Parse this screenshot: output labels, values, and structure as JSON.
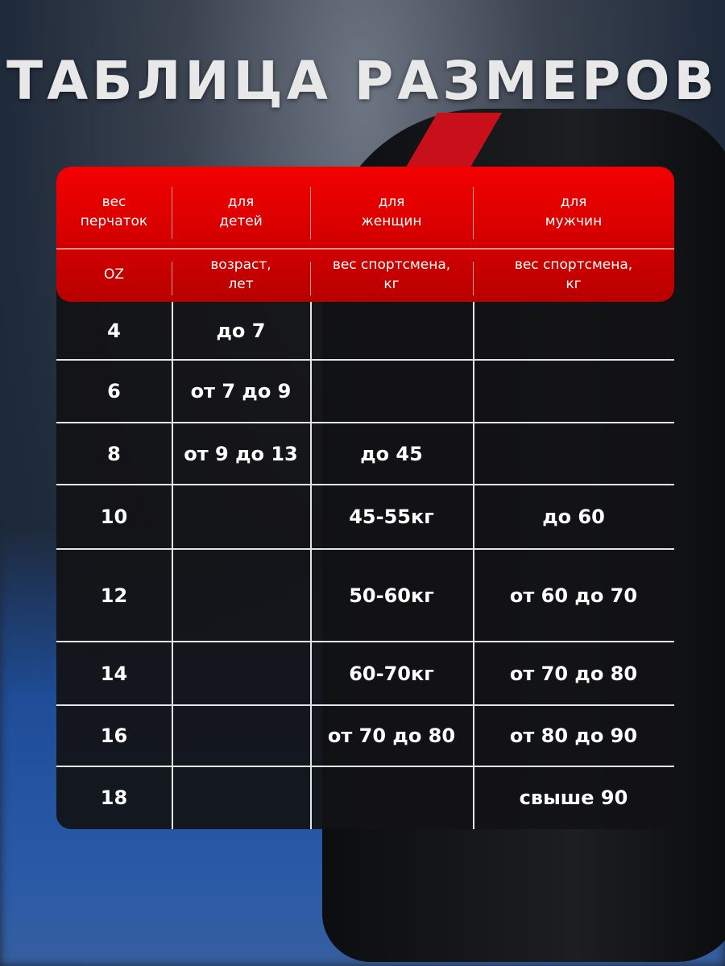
{
  "title": "ТАБЛИЦА РАЗМЕРОВ",
  "header": {
    "row1": [
      "вес\nперчаток",
      "для\nдетей",
      "для\nженщин",
      "для\nмужчин"
    ],
    "row2": [
      "OZ",
      "возраст,\nлет",
      "вес спортсмена,\nкг",
      "вес спортсмена,\nкг"
    ]
  },
  "rows": [
    [
      "4",
      "до 7",
      "",
      ""
    ],
    [
      "6",
      "от 7 до 9",
      "",
      ""
    ],
    [
      "8",
      "от 9 до 13",
      "до 45",
      ""
    ],
    [
      "10",
      "",
      "45-55кг",
      "до 60"
    ],
    [
      "12",
      "",
      "50-60кг",
      "от 60 до 70"
    ],
    [
      "14",
      "",
      "60-70кг",
      "от 70 до 80"
    ],
    [
      "16",
      "",
      "от 70 до 80",
      "от 80 до 90"
    ],
    [
      "18",
      "",
      "",
      "свыше 90"
    ]
  ],
  "colors": {
    "header_red": "#e00000",
    "body": "#121214"
  }
}
